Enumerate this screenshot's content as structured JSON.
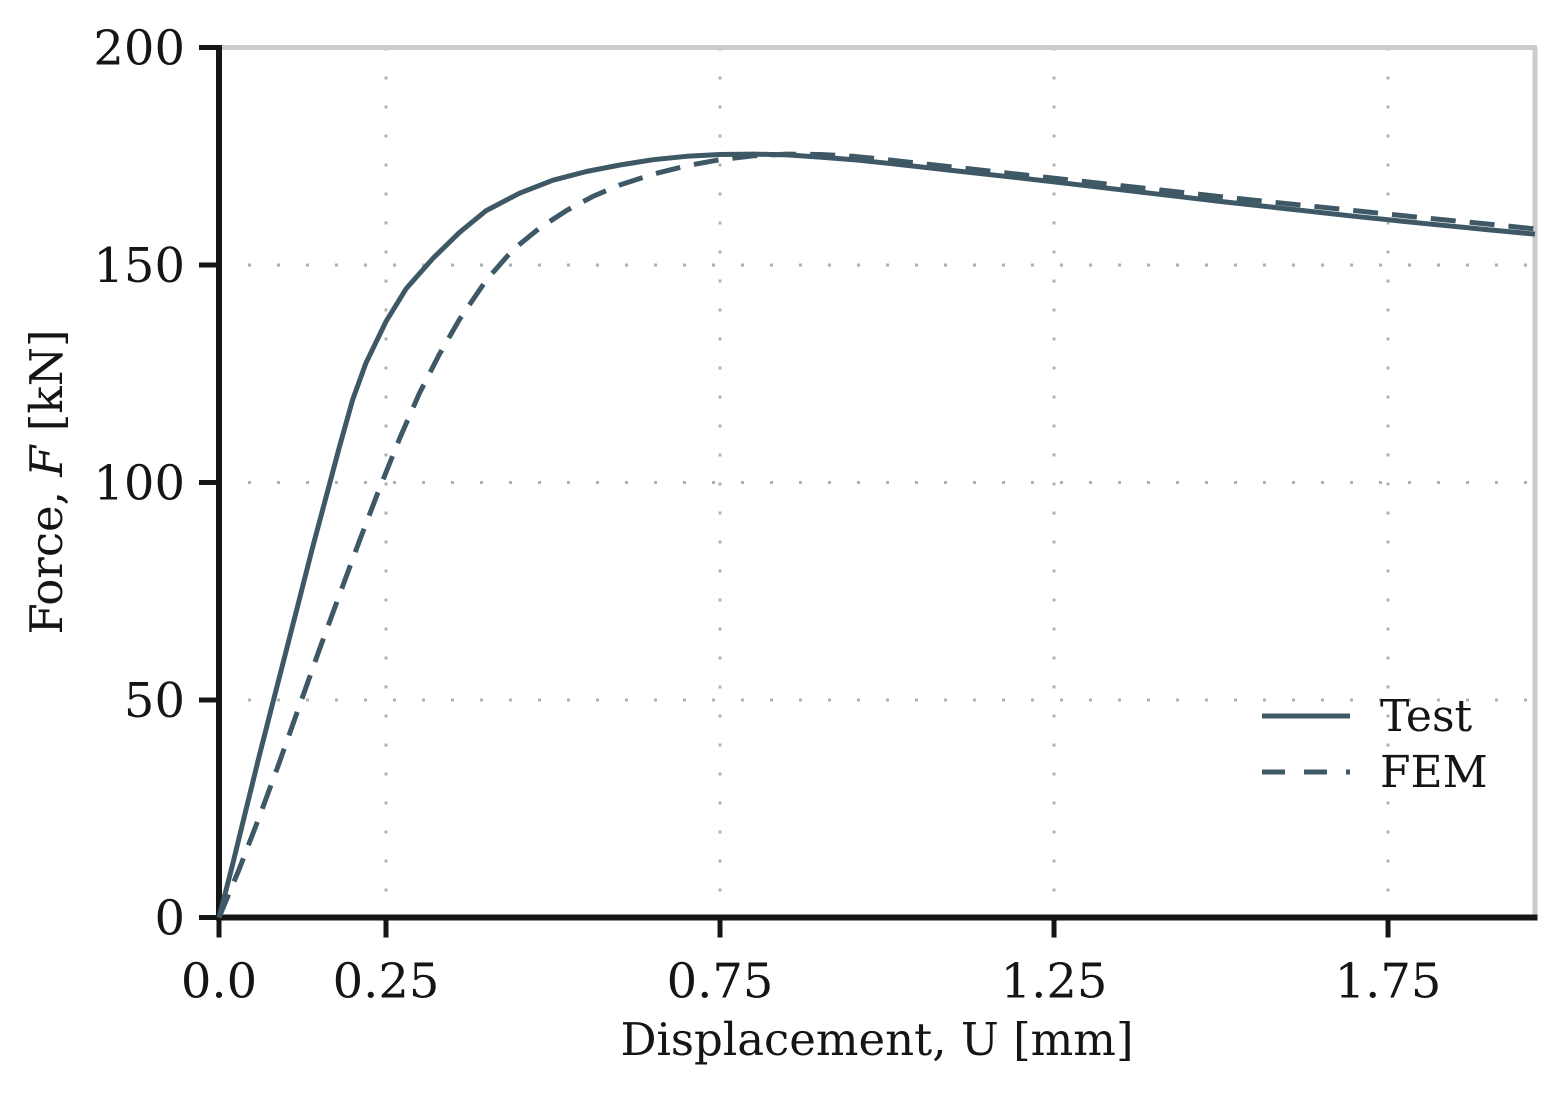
{
  "figure": {
    "background": "#ffffff"
  },
  "chart_data": {
    "type": "line",
    "title": "",
    "xlabel": "Displacement, U [mm]",
    "ylabel_prefix": "Force, ",
    "ylabel_symbol": "F",
    "ylabel_suffix": " [kN]",
    "xlim": [
      0,
      1.97
    ],
    "ylim": [
      0,
      200
    ],
    "x_ticks": [
      {
        "value": 0.0,
        "label": "0.0"
      },
      {
        "value": 0.25,
        "label": "0.25"
      },
      {
        "value": 0.75,
        "label": "0.75"
      },
      {
        "value": 1.25,
        "label": "1.25"
      },
      {
        "value": 1.75,
        "label": "1.75"
      }
    ],
    "y_ticks": [
      {
        "value": 0,
        "label": "0"
      },
      {
        "value": 50,
        "label": "50"
      },
      {
        "value": 100,
        "label": "100"
      },
      {
        "value": 150,
        "label": "150"
      },
      {
        "value": 200,
        "label": "200"
      }
    ],
    "x_gridlines": [
      0.25,
      0.75,
      1.25,
      1.75
    ],
    "y_gridlines": [
      50,
      100,
      150
    ],
    "grid_style": "dotted",
    "legend_position": "center-right",
    "colors": {
      "line": "#3e5866",
      "axis": "#151515",
      "grid": "#b0b0b0",
      "spine_light": "#cbcbcb"
    },
    "series": [
      {
        "name": "Test",
        "line_style": "solid",
        "color": "#3e5866",
        "points": [
          [
            0,
            0
          ],
          [
            0.02,
            12
          ],
          [
            0.04,
            24.5
          ],
          [
            0.06,
            37
          ],
          [
            0.08,
            49
          ],
          [
            0.1,
            61
          ],
          [
            0.12,
            73
          ],
          [
            0.14,
            85
          ],
          [
            0.16,
            96.5
          ],
          [
            0.18,
            108
          ],
          [
            0.2,
            119
          ],
          [
            0.22,
            127.5
          ],
          [
            0.25,
            137
          ],
          [
            0.28,
            144.5
          ],
          [
            0.32,
            151.5
          ],
          [
            0.36,
            157.5
          ],
          [
            0.4,
            162.5
          ],
          [
            0.45,
            166.5
          ],
          [
            0.5,
            169.5
          ],
          [
            0.55,
            171.5
          ],
          [
            0.6,
            173
          ],
          [
            0.65,
            174.2
          ],
          [
            0.7,
            175
          ],
          [
            0.75,
            175.4
          ],
          [
            0.8,
            175.5
          ],
          [
            0.85,
            175.3
          ],
          [
            0.9,
            174.8
          ],
          [
            0.95,
            174.2
          ],
          [
            1.0,
            173.4
          ],
          [
            1.1,
            171.7
          ],
          [
            1.2,
            170
          ],
          [
            1.3,
            168.2
          ],
          [
            1.4,
            166.4
          ],
          [
            1.5,
            164.6
          ],
          [
            1.6,
            162.9
          ],
          [
            1.7,
            161.2
          ],
          [
            1.8,
            159.6
          ],
          [
            1.9,
            158.1
          ],
          [
            1.97,
            157.1
          ]
        ]
      },
      {
        "name": "FEM",
        "line_style": "dashed",
        "color": "#3e5866",
        "points": [
          [
            0,
            0
          ],
          [
            0.03,
            11
          ],
          [
            0.06,
            23
          ],
          [
            0.09,
            35.5
          ],
          [
            0.12,
            48.5
          ],
          [
            0.15,
            61.5
          ],
          [
            0.18,
            74
          ],
          [
            0.21,
            86.5
          ],
          [
            0.24,
            98.5
          ],
          [
            0.27,
            110
          ],
          [
            0.3,
            120.5
          ],
          [
            0.33,
            129.5
          ],
          [
            0.36,
            137.5
          ],
          [
            0.4,
            146.5
          ],
          [
            0.44,
            153.5
          ],
          [
            0.48,
            158.5
          ],
          [
            0.52,
            162.5
          ],
          [
            0.56,
            165.8
          ],
          [
            0.6,
            168.4
          ],
          [
            0.65,
            170.9
          ],
          [
            0.7,
            172.8
          ],
          [
            0.75,
            174.2
          ],
          [
            0.8,
            175.1
          ],
          [
            0.85,
            175.5
          ],
          [
            0.9,
            175.4
          ],
          [
            0.95,
            175.0
          ],
          [
            1.0,
            174.2
          ],
          [
            1.1,
            172.5
          ],
          [
            1.2,
            170.8
          ],
          [
            1.3,
            169.1
          ],
          [
            1.4,
            167.4
          ],
          [
            1.5,
            165.7
          ],
          [
            1.6,
            164.1
          ],
          [
            1.7,
            162.5
          ],
          [
            1.8,
            160.9
          ],
          [
            1.9,
            159.4
          ],
          [
            1.97,
            158.3
          ]
        ]
      }
    ]
  },
  "legend": {
    "items": [
      {
        "label": "Test",
        "style": "solid"
      },
      {
        "label": "FEM",
        "style": "dashed"
      }
    ]
  }
}
